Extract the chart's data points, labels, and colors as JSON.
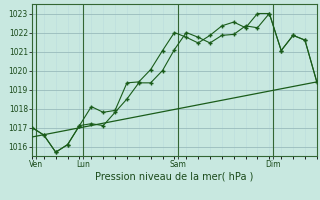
{
  "xlabel": "Pression niveau de la mer( hPa )",
  "bg_color": "#c8e8e0",
  "grid_color_major": "#99bbbb",
  "grid_color_minor": "#bbdddd",
  "line_color": "#1a5c1a",
  "trend_color": "#2d7a2d",
  "ylim": [
    1015.5,
    1023.5
  ],
  "xlim": [
    0,
    24
  ],
  "yticks": [
    1016,
    1017,
    1018,
    1019,
    1020,
    1021,
    1022,
    1023
  ],
  "day_labels": [
    "Ven",
    "Lun",
    "Sam",
    "Dim"
  ],
  "day_positions": [
    0.3,
    4.3,
    12.3,
    20.3
  ],
  "vline_positions": [
    0.3,
    4.3,
    12.3,
    20.3
  ],
  "series1_x": [
    0,
    1,
    2,
    3,
    4,
    5,
    6,
    7,
    8,
    9,
    10,
    11,
    12,
    13,
    14,
    15,
    16,
    17,
    18,
    19,
    20,
    21,
    22,
    23,
    24
  ],
  "series1_y": [
    1017.0,
    1016.6,
    1015.7,
    1016.1,
    1017.1,
    1017.2,
    1017.1,
    1017.8,
    1018.5,
    1019.35,
    1019.35,
    1020.0,
    1021.1,
    1022.0,
    1021.75,
    1021.45,
    1021.85,
    1021.9,
    1022.35,
    1022.25,
    1023.0,
    1021.05,
    1021.85,
    1021.6,
    1019.4
  ],
  "series2_x": [
    0,
    1,
    2,
    3,
    4,
    5,
    6,
    7,
    8,
    9,
    10,
    11,
    12,
    13,
    14,
    15,
    16,
    17,
    18,
    19,
    20,
    21,
    22,
    23,
    24
  ],
  "series2_y": [
    1017.0,
    1016.6,
    1015.7,
    1016.1,
    1017.1,
    1018.1,
    1017.8,
    1017.9,
    1019.35,
    1019.4,
    1020.05,
    1021.05,
    1022.0,
    1021.75,
    1021.45,
    1021.85,
    1022.35,
    1022.55,
    1022.25,
    1023.0,
    1023.0,
    1021.05,
    1021.85,
    1021.6,
    1019.4
  ],
  "trend_x": [
    0,
    24
  ],
  "trend_y": [
    1016.5,
    1019.4
  ]
}
